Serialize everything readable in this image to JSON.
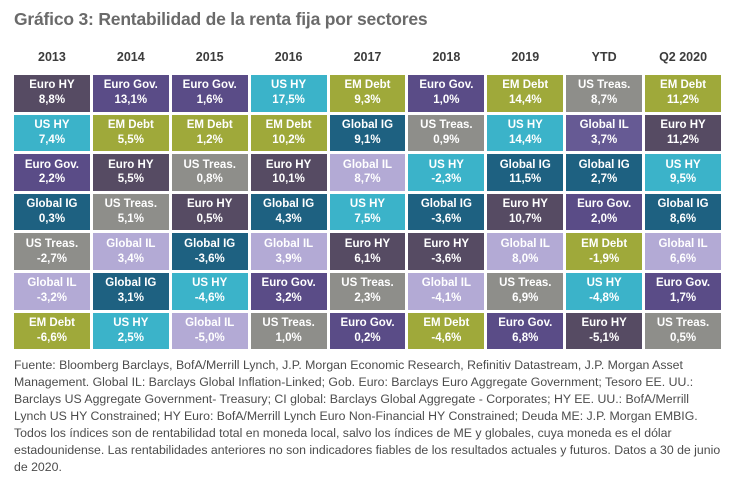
{
  "chart_data": {
    "type": "table",
    "title": "Gráfico 3: Rentabilidad de la renta fija por sectores",
    "columns_note": "quilt chart of fixed income total returns by sector, values as shown with comma decimals",
    "asset_colors": {
      "Euro HY": "#564b63",
      "Euro Gov.": "#5a4c87",
      "US HY": "#3bb3c9",
      "EM Debt": "#9fa93a",
      "US Treas.": "#8e8e8a",
      "Global IG": "#1e6181",
      "Global IL": "#b3aad5"
    },
    "header_text_color": "#3c3c3c",
    "cell_text_color": "#ffffff",
    "columns": [
      {
        "label": "2013",
        "cells": [
          {
            "asset": "Euro HY",
            "value": "8,8%"
          },
          {
            "asset": "US HY",
            "value": "7,4%"
          },
          {
            "asset": "Euro Gov.",
            "value": "2,2%"
          },
          {
            "asset": "Global IG",
            "value": "0,3%"
          },
          {
            "asset": "US Treas.",
            "value": "-2,7%"
          },
          {
            "asset": "Global IL",
            "value": "-3,2%"
          },
          {
            "asset": "EM Debt",
            "value": "-6,6%"
          }
        ]
      },
      {
        "label": "2014",
        "cells": [
          {
            "asset": "Euro Gov.",
            "value": "13,1%"
          },
          {
            "asset": "EM Debt",
            "value": "5,5%"
          },
          {
            "asset": "Euro HY",
            "value": "5,5%"
          },
          {
            "asset": "US Treas.",
            "value": "5,1%"
          },
          {
            "asset": "Global IL",
            "value": "3,4%"
          },
          {
            "asset": "Global IG",
            "value": "3,1%"
          },
          {
            "asset": "US HY",
            "value": "2,5%"
          }
        ]
      },
      {
        "label": "2015",
        "cells": [
          {
            "asset": "Euro Gov.",
            "value": "1,6%"
          },
          {
            "asset": "EM Debt",
            "value": "1,2%"
          },
          {
            "asset": "US Treas.",
            "value": "0,8%"
          },
          {
            "asset": "Euro HY",
            "value": "0,5%"
          },
          {
            "asset": "Global IG",
            "value": "-3,6%"
          },
          {
            "asset": "US HY",
            "value": "-4,6%"
          },
          {
            "asset": "Global IL",
            "value": "-5,0%"
          }
        ]
      },
      {
        "label": "2016",
        "cells": [
          {
            "asset": "US HY",
            "value": "17,5%"
          },
          {
            "asset": "EM Debt",
            "value": "10,2%"
          },
          {
            "asset": "Euro HY",
            "value": "10,1%"
          },
          {
            "asset": "Global IG",
            "value": "4,3%"
          },
          {
            "asset": "Global IL",
            "value": "3,9%"
          },
          {
            "asset": "Euro Gov.",
            "value": "3,2%"
          },
          {
            "asset": "US Treas.",
            "value": "1,0%"
          }
        ]
      },
      {
        "label": "2017",
        "cells": [
          {
            "asset": "EM Debt",
            "value": "9,3%"
          },
          {
            "asset": "Global IG",
            "value": "9,1%"
          },
          {
            "asset": "Global IL",
            "value": "8,7%"
          },
          {
            "asset": "US HY",
            "value": "7,5%"
          },
          {
            "asset": "Euro HY",
            "value": "6,1%"
          },
          {
            "asset": "US Treas.",
            "value": "2,3%"
          },
          {
            "asset": "Euro Gov.",
            "value": "0,2%"
          }
        ]
      },
      {
        "label": "2018",
        "cells": [
          {
            "asset": "Euro Gov.",
            "value": "1,0%"
          },
          {
            "asset": "US Treas.",
            "value": "0,9%"
          },
          {
            "asset": "US HY",
            "value": "-2,3%"
          },
          {
            "asset": "Global IG",
            "value": "-3,6%"
          },
          {
            "asset": "Euro HY",
            "value": "-3,6%"
          },
          {
            "asset": "Global IL",
            "value": "-4,1%"
          },
          {
            "asset": "EM Debt",
            "value": "-4,6%"
          }
        ]
      },
      {
        "label": "2019",
        "cells": [
          {
            "asset": "EM Debt",
            "value": "14,4%"
          },
          {
            "asset": "US HY",
            "value": "14,4%"
          },
          {
            "asset": "Global IG",
            "value": "11,5%"
          },
          {
            "asset": "Euro HY",
            "value": "10,7%"
          },
          {
            "asset": "Global IL",
            "value": "8,0%"
          },
          {
            "asset": "US Treas.",
            "value": "6,9%"
          },
          {
            "asset": "Euro Gov.",
            "value": "6,8%"
          }
        ]
      },
      {
        "label": "YTD",
        "cells": [
          {
            "asset": "US Treas.",
            "value": "8,7%"
          },
          {
            "asset": "Global IL",
            "value": "3,7%",
            "color": "#665a94"
          },
          {
            "asset": "Global IG",
            "value": "2,7%"
          },
          {
            "asset": "Euro Gov.",
            "value": "2,0%"
          },
          {
            "asset": "EM Debt",
            "value": "-1,9%"
          },
          {
            "asset": "US HY",
            "value": "-4,8%"
          },
          {
            "asset": "Euro HY",
            "value": "-5,1%"
          }
        ]
      },
      {
        "label": "Q2 2020",
        "cells": [
          {
            "asset": "EM Debt",
            "value": "11,2%"
          },
          {
            "asset": "Euro HY",
            "value": "11,2%"
          },
          {
            "asset": "US HY",
            "value": "9,5%"
          },
          {
            "asset": "Global IG",
            "value": "8,6%"
          },
          {
            "asset": "Global IL",
            "value": "6,6%"
          },
          {
            "asset": "Euro Gov.",
            "value": "1,7%"
          },
          {
            "asset": "US Treas.",
            "value": "0,5%"
          }
        ]
      }
    ]
  },
  "footer": {
    "text": "Fuente: Bloomberg Barclays, BofA/Merrill Lynch, J.P. Morgan Economic Research, Refinitiv Datastream, J.P. Morgan Asset Management. Global IL: Barclays Global Inflation-Linked; Gob. Euro: Barclays Euro Aggregate Government; Tesoro EE. UU.: Barclays US Aggregate Government- Treasury; CI global: Barclays Global Aggregate - Corporates; HY EE. UU.: BofA/Merrill Lynch US HY Constrained; HY Euro: BofA/Merrill Lynch Euro Non-Financial HY Constrained; Deuda ME: J.P. Morgan EMBIG. Todos los índices son de rentabilidad total en moneda local, salvo los índices de ME y globales, cuya moneda es el dólar estadounidense. Las rentabilidades anteriores no son indicadores fiables de los resultados actuales y futuros. Datos a 30 de junio de 2020."
  }
}
